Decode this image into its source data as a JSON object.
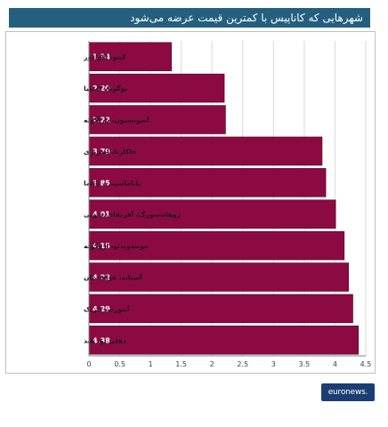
{
  "chart_data": {
    "type": "bar",
    "orientation": "horizontal",
    "title": "شهرهایی که کاناپیس با کمترین قیمت عرضه می‌شود",
    "categories": [
      "کیتو، اکوادور",
      "بوگوتا، کلمبیا",
      "آسونسیون، پاراگوئه",
      "جاکارتا، اندونزی",
      "پاناماسیتی، پاناما",
      "ژوهانسبورگ، آفریقای جنوبی",
      "مونته‌ویدئو، اروگوئه",
      "آستانه، قزاقستان",
      "آنتورپ، بلژیک",
      "دهلی نو، هند"
    ],
    "values": [
      1.34,
      2.2,
      2.22,
      3.79,
      3.85,
      4.01,
      4.15,
      4.22,
      4.29,
      4.38
    ],
    "value_labels": [
      "1.34",
      "2.20",
      "2.22",
      "3.79",
      "3.85",
      "4.01",
      "4.15",
      "4.22",
      "4.29",
      "4.38"
    ],
    "xlim": [
      0,
      4.5
    ],
    "x_ticks": [
      "0",
      "0.5",
      "1",
      "1.5",
      "2",
      "2.5",
      "3",
      "3.5",
      "4",
      "4.5"
    ],
    "grid": true,
    "xlabel": "",
    "ylabel": "",
    "bar_color": "#8c0a42"
  },
  "logo": {
    "text": "euronews."
  }
}
